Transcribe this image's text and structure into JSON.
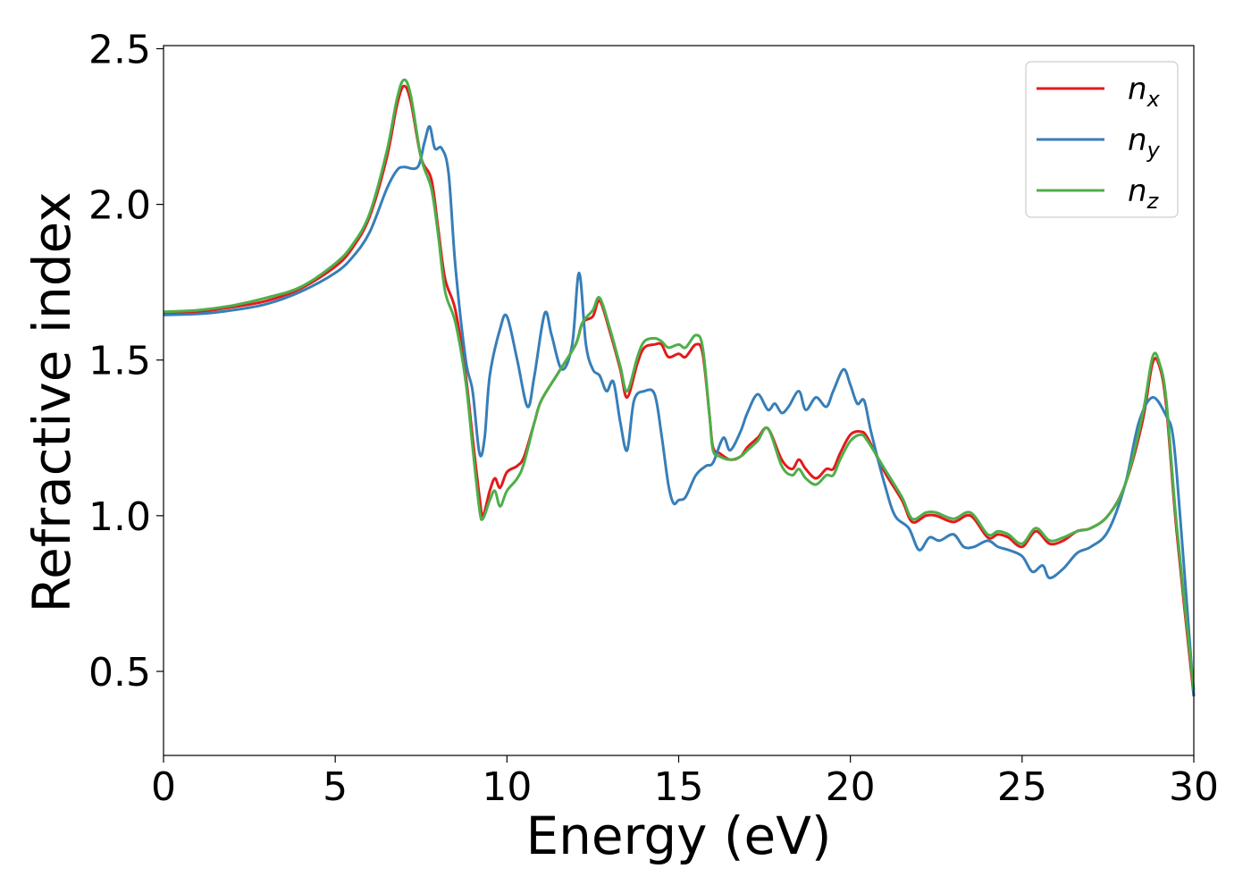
{
  "chart_data": {
    "type": "line",
    "title": "",
    "xlabel": "Energy (eV)",
    "ylabel": "Refractive index",
    "xlim": [
      0,
      30
    ],
    "ylim": [
      0.23,
      2.51
    ],
    "x_ticks": [
      0,
      5,
      10,
      15,
      20,
      25,
      30
    ],
    "x_tick_labels": [
      "0",
      "5",
      "10",
      "15",
      "20",
      "25",
      "30"
    ],
    "y_ticks": [
      0.5,
      1.0,
      1.5,
      2.0,
      2.5
    ],
    "y_tick_labels": [
      "0.5",
      "1.0",
      "1.5",
      "2.0",
      "2.5"
    ],
    "grid": false,
    "legend_position": "top-right",
    "series": [
      {
        "name": "n",
        "subscript": "x",
        "color": "#e41a1c",
        "points": [
          [
            0,
            1.65
          ],
          [
            1,
            1.655
          ],
          [
            2,
            1.67
          ],
          [
            3,
            1.69
          ],
          [
            4,
            1.73
          ],
          [
            5,
            1.8
          ],
          [
            5.5,
            1.86
          ],
          [
            6,
            1.96
          ],
          [
            6.5,
            2.15
          ],
          [
            6.8,
            2.32
          ],
          [
            7,
            2.38
          ],
          [
            7.2,
            2.33
          ],
          [
            7.5,
            2.15
          ],
          [
            7.8,
            2.08
          ],
          [
            8,
            1.92
          ],
          [
            8.2,
            1.76
          ],
          [
            8.5,
            1.66
          ],
          [
            8.8,
            1.45
          ],
          [
            9,
            1.25
          ],
          [
            9.2,
            1.06
          ],
          [
            9.3,
            1.0
          ],
          [
            9.5,
            1.08
          ],
          [
            9.65,
            1.12
          ],
          [
            9.8,
            1.09
          ],
          [
            10,
            1.14
          ],
          [
            10.3,
            1.16
          ],
          [
            10.5,
            1.19
          ],
          [
            10.8,
            1.3
          ],
          [
            11,
            1.37
          ],
          [
            11.5,
            1.46
          ],
          [
            12,
            1.55
          ],
          [
            12.2,
            1.62
          ],
          [
            12.5,
            1.64
          ],
          [
            12.7,
            1.69
          ],
          [
            13,
            1.59
          ],
          [
            13.3,
            1.47
          ],
          [
            13.5,
            1.38
          ],
          [
            13.8,
            1.49
          ],
          [
            14,
            1.54
          ],
          [
            14.3,
            1.55
          ],
          [
            14.5,
            1.55
          ],
          [
            14.7,
            1.51
          ],
          [
            15,
            1.52
          ],
          [
            15.2,
            1.51
          ],
          [
            15.5,
            1.55
          ],
          [
            15.7,
            1.52
          ],
          [
            15.9,
            1.32
          ],
          [
            16,
            1.22
          ],
          [
            16.2,
            1.2
          ],
          [
            16.5,
            1.18
          ],
          [
            16.8,
            1.19
          ],
          [
            17,
            1.22
          ],
          [
            17.3,
            1.25
          ],
          [
            17.6,
            1.28
          ],
          [
            18,
            1.18
          ],
          [
            18.3,
            1.15
          ],
          [
            18.5,
            1.18
          ],
          [
            18.7,
            1.15
          ],
          [
            19,
            1.12
          ],
          [
            19.3,
            1.15
          ],
          [
            19.5,
            1.15
          ],
          [
            19.7,
            1.2
          ],
          [
            20,
            1.26
          ],
          [
            20.3,
            1.27
          ],
          [
            20.5,
            1.25
          ],
          [
            21,
            1.14
          ],
          [
            21.5,
            1.05
          ],
          [
            21.8,
            0.98
          ],
          [
            22.2,
            1.0
          ],
          [
            22.5,
            1.0
          ],
          [
            23,
            0.98
          ],
          [
            23.5,
            1.0
          ],
          [
            24,
            0.93
          ],
          [
            24.3,
            0.94
          ],
          [
            24.6,
            0.93
          ],
          [
            25,
            0.9
          ],
          [
            25.4,
            0.95
          ],
          [
            25.8,
            0.91
          ],
          [
            26.2,
            0.92
          ],
          [
            26.6,
            0.95
          ],
          [
            27,
            0.96
          ],
          [
            27.5,
            1.0
          ],
          [
            28,
            1.1
          ],
          [
            28.5,
            1.3
          ],
          [
            28.8,
            1.49
          ],
          [
            29,
            1.48
          ],
          [
            29.2,
            1.35
          ],
          [
            29.5,
            0.95
          ],
          [
            30,
            0.42
          ]
        ]
      },
      {
        "name": "n",
        "subscript": "y",
        "color": "#377eb8",
        "points": [
          [
            0,
            1.645
          ],
          [
            1,
            1.648
          ],
          [
            2,
            1.66
          ],
          [
            3,
            1.68
          ],
          [
            4,
            1.72
          ],
          [
            5,
            1.78
          ],
          [
            5.5,
            1.83
          ],
          [
            6,
            1.91
          ],
          [
            6.5,
            2.05
          ],
          [
            6.8,
            2.11
          ],
          [
            7,
            2.12
          ],
          [
            7.4,
            2.12
          ],
          [
            7.6,
            2.2
          ],
          [
            7.75,
            2.25
          ],
          [
            7.9,
            2.18
          ],
          [
            8.1,
            2.18
          ],
          [
            8.3,
            2.1
          ],
          [
            8.5,
            1.8
          ],
          [
            8.8,
            1.5
          ],
          [
            9,
            1.4
          ],
          [
            9.2,
            1.2
          ],
          [
            9.35,
            1.25
          ],
          [
            9.5,
            1.45
          ],
          [
            9.8,
            1.6
          ],
          [
            10,
            1.64
          ],
          [
            10.3,
            1.5
          ],
          [
            10.6,
            1.35
          ],
          [
            10.8,
            1.45
          ],
          [
            11.1,
            1.65
          ],
          [
            11.3,
            1.58
          ],
          [
            11.6,
            1.47
          ],
          [
            11.9,
            1.55
          ],
          [
            12.1,
            1.78
          ],
          [
            12.3,
            1.55
          ],
          [
            12.5,
            1.47
          ],
          [
            12.7,
            1.45
          ],
          [
            12.9,
            1.4
          ],
          [
            13.1,
            1.43
          ],
          [
            13.3,
            1.3
          ],
          [
            13.5,
            1.21
          ],
          [
            13.7,
            1.37
          ],
          [
            14,
            1.4
          ],
          [
            14.3,
            1.39
          ],
          [
            14.5,
            1.26
          ],
          [
            14.7,
            1.1
          ],
          [
            14.85,
            1.04
          ],
          [
            15,
            1.05
          ],
          [
            15.2,
            1.06
          ],
          [
            15.5,
            1.13
          ],
          [
            15.8,
            1.16
          ],
          [
            16,
            1.17
          ],
          [
            16.3,
            1.25
          ],
          [
            16.5,
            1.21
          ],
          [
            16.8,
            1.27
          ],
          [
            17,
            1.33
          ],
          [
            17.3,
            1.39
          ],
          [
            17.6,
            1.34
          ],
          [
            17.8,
            1.36
          ],
          [
            18,
            1.33
          ],
          [
            18.2,
            1.35
          ],
          [
            18.5,
            1.4
          ],
          [
            18.7,
            1.34
          ],
          [
            19,
            1.38
          ],
          [
            19.3,
            1.35
          ],
          [
            19.5,
            1.4
          ],
          [
            19.8,
            1.47
          ],
          [
            20,
            1.42
          ],
          [
            20.2,
            1.36
          ],
          [
            20.4,
            1.37
          ],
          [
            20.6,
            1.27
          ],
          [
            21,
            1.1
          ],
          [
            21.3,
            1.0
          ],
          [
            21.7,
            0.96
          ],
          [
            22,
            0.89
          ],
          [
            22.3,
            0.93
          ],
          [
            22.6,
            0.92
          ],
          [
            23,
            0.94
          ],
          [
            23.3,
            0.9
          ],
          [
            23.6,
            0.9
          ],
          [
            24,
            0.92
          ],
          [
            24.3,
            0.9
          ],
          [
            24.6,
            0.89
          ],
          [
            25,
            0.87
          ],
          [
            25.3,
            0.82
          ],
          [
            25.6,
            0.84
          ],
          [
            25.8,
            0.8
          ],
          [
            26.2,
            0.83
          ],
          [
            26.6,
            0.88
          ],
          [
            27,
            0.9
          ],
          [
            27.5,
            0.95
          ],
          [
            28,
            1.1
          ],
          [
            28.4,
            1.3
          ],
          [
            28.8,
            1.38
          ],
          [
            29.2,
            1.32
          ],
          [
            29.4,
            1.25
          ],
          [
            29.6,
            1.0
          ],
          [
            30,
            0.42
          ]
        ]
      },
      {
        "name": "n",
        "subscript": "z",
        "color": "#4daf4a",
        "points": [
          [
            0,
            1.655
          ],
          [
            1,
            1.66
          ],
          [
            2,
            1.675
          ],
          [
            3,
            1.7
          ],
          [
            4,
            1.735
          ],
          [
            5,
            1.81
          ],
          [
            5.5,
            1.87
          ],
          [
            6,
            1.97
          ],
          [
            6.5,
            2.17
          ],
          [
            6.8,
            2.34
          ],
          [
            7,
            2.4
          ],
          [
            7.2,
            2.35
          ],
          [
            7.5,
            2.15
          ],
          [
            7.8,
            2.05
          ],
          [
            8,
            1.9
          ],
          [
            8.2,
            1.72
          ],
          [
            8.5,
            1.62
          ],
          [
            8.8,
            1.43
          ],
          [
            9,
            1.22
          ],
          [
            9.2,
            1.02
          ],
          [
            9.3,
            0.99
          ],
          [
            9.5,
            1.05
          ],
          [
            9.65,
            1.08
          ],
          [
            9.8,
            1.03
          ],
          [
            10,
            1.08
          ],
          [
            10.3,
            1.12
          ],
          [
            10.5,
            1.17
          ],
          [
            10.8,
            1.3
          ],
          [
            11,
            1.37
          ],
          [
            11.5,
            1.46
          ],
          [
            12,
            1.55
          ],
          [
            12.2,
            1.62
          ],
          [
            12.5,
            1.66
          ],
          [
            12.7,
            1.7
          ],
          [
            13,
            1.6
          ],
          [
            13.3,
            1.48
          ],
          [
            13.5,
            1.4
          ],
          [
            13.8,
            1.51
          ],
          [
            14,
            1.56
          ],
          [
            14.3,
            1.57
          ],
          [
            14.5,
            1.56
          ],
          [
            14.7,
            1.54
          ],
          [
            15,
            1.55
          ],
          [
            15.2,
            1.54
          ],
          [
            15.5,
            1.58
          ],
          [
            15.7,
            1.54
          ],
          [
            15.9,
            1.32
          ],
          [
            16,
            1.21
          ],
          [
            16.2,
            1.19
          ],
          [
            16.5,
            1.18
          ],
          [
            16.8,
            1.19
          ],
          [
            17,
            1.21
          ],
          [
            17.3,
            1.24
          ],
          [
            17.6,
            1.28
          ],
          [
            18,
            1.16
          ],
          [
            18.3,
            1.13
          ],
          [
            18.5,
            1.15
          ],
          [
            18.7,
            1.12
          ],
          [
            19,
            1.1
          ],
          [
            19.3,
            1.13
          ],
          [
            19.5,
            1.13
          ],
          [
            19.7,
            1.18
          ],
          [
            20,
            1.24
          ],
          [
            20.3,
            1.26
          ],
          [
            20.5,
            1.24
          ],
          [
            21,
            1.15
          ],
          [
            21.5,
            1.06
          ],
          [
            21.8,
            0.99
          ],
          [
            22.2,
            1.01
          ],
          [
            22.5,
            1.01
          ],
          [
            23,
            0.99
          ],
          [
            23.5,
            1.01
          ],
          [
            24,
            0.94
          ],
          [
            24.3,
            0.95
          ],
          [
            24.6,
            0.94
          ],
          [
            25,
            0.91
          ],
          [
            25.4,
            0.96
          ],
          [
            25.8,
            0.92
          ],
          [
            26.2,
            0.93
          ],
          [
            26.6,
            0.95
          ],
          [
            27,
            0.96
          ],
          [
            27.5,
            1.0
          ],
          [
            28,
            1.1
          ],
          [
            28.5,
            1.32
          ],
          [
            28.8,
            1.51
          ],
          [
            29,
            1.49
          ],
          [
            29.2,
            1.37
          ],
          [
            29.5,
            0.97
          ],
          [
            30,
            0.44
          ]
        ]
      }
    ]
  }
}
